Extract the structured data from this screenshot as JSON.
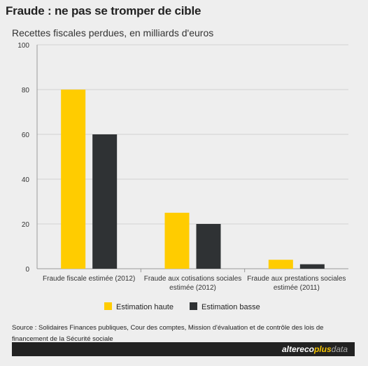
{
  "header": {
    "title": "Fraude : ne pas se tromper de cible",
    "subtitle": "Recettes fiscales perdues, en milliards d'euros"
  },
  "chart_data": {
    "type": "bar",
    "categories": [
      [
        "Fraude fiscale estimée (2012)"
      ],
      [
        "Fraude aux cotisations sociales",
        "estimée (2012)"
      ],
      [
        "Fraude aux prestations sociales",
        "estimée (2011)"
      ]
    ],
    "series": [
      {
        "name": "Estimation haute",
        "color": "#ffcc00",
        "values": [
          80,
          25,
          4
        ]
      },
      {
        "name": "Estimation basse",
        "color": "#2f3234",
        "values": [
          60,
          20,
          2
        ]
      }
    ],
    "ylim": [
      0,
      100
    ],
    "yticks": [
      0,
      20,
      40,
      60,
      80,
      100
    ],
    "grid": true,
    "legend": "bottom"
  },
  "footer": {
    "source": "Source : Solidaires Finances publiques, Cour des comptes, Mission d'évaluation et de contrôle des lois de financement de la Sécurité sociale",
    "brand_part1": "altereco",
    "brand_part2": "plus",
    "brand_part3": "data"
  }
}
